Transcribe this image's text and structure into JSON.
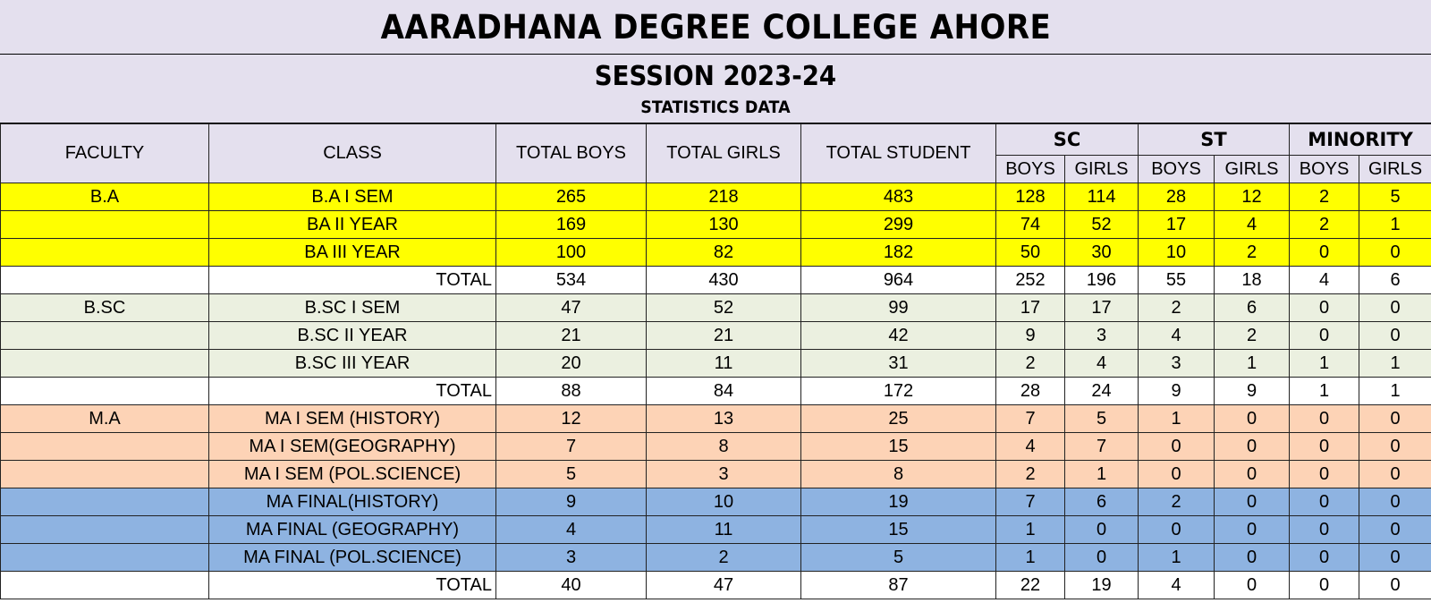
{
  "title": "AARADHANA DEGREE COLLEGE AHORE",
  "session": "SESSION 2023-24",
  "subtitle": "STATISTICS DATA",
  "headers": {
    "faculty": "FACULTY",
    "class": "CLASS",
    "total_boys": "TOTAL BOYS",
    "total_girls": "TOTAL GIRLS",
    "total_student": "TOTAL STUDENT",
    "sc": "SC",
    "st": "ST",
    "minority": "MINORITY",
    "boys": "BOYS",
    "girls": "GIRLS"
  },
  "colors": {
    "header_bg": "#e4e0ee",
    "ba_rows": "#ffff00",
    "bsc_rows": "#ebf0e0",
    "ma_sem_rows": "#fdd3b6",
    "ma_final_rows": "#8eb3e1",
    "total_rows": "#ffffff"
  },
  "rows": [
    {
      "faculty": "B.A",
      "class": "B.A I SEM",
      "tb": "265",
      "tg": "218",
      "ts": "483",
      "scb": "128",
      "scg": "114",
      "stb": "28",
      "stg": "12",
      "mb": "2",
      "mg": "5"
    },
    {
      "faculty": "",
      "class": "BA II YEAR",
      "tb": "169",
      "tg": "130",
      "ts": "299",
      "scb": "74",
      "scg": "52",
      "stb": "17",
      "stg": "4",
      "mb": "2",
      "mg": "1"
    },
    {
      "faculty": "",
      "class": "BA III YEAR",
      "tb": "100",
      "tg": "82",
      "ts": "182",
      "scb": "50",
      "scg": "30",
      "stb": "10",
      "stg": "2",
      "mb": "0",
      "mg": "0"
    },
    {
      "faculty": "",
      "class": "TOTAL",
      "tb": "534",
      "tg": "430",
      "ts": "964",
      "scb": "252",
      "scg": "196",
      "stb": "55",
      "stg": "18",
      "mb": "4",
      "mg": "6"
    },
    {
      "faculty": "B.SC",
      "class": "B.SC I SEM",
      "tb": "47",
      "tg": "52",
      "ts": "99",
      "scb": "17",
      "scg": "17",
      "stb": "2",
      "stg": "6",
      "mb": "0",
      "mg": "0"
    },
    {
      "faculty": "",
      "class": "B.SC II YEAR",
      "tb": "21",
      "tg": "21",
      "ts": "42",
      "scb": "9",
      "scg": "3",
      "stb": "4",
      "stg": "2",
      "mb": "0",
      "mg": "0"
    },
    {
      "faculty": "",
      "class": "B.SC III YEAR",
      "tb": "20",
      "tg": "11",
      "ts": "31",
      "scb": "2",
      "scg": "4",
      "stb": "3",
      "stg": "1",
      "mb": "1",
      "mg": "1"
    },
    {
      "faculty": "",
      "class": "TOTAL",
      "tb": "88",
      "tg": "84",
      "ts": "172",
      "scb": "28",
      "scg": "24",
      "stb": "9",
      "stg": "9",
      "mb": "1",
      "mg": "1"
    },
    {
      "faculty": "M.A",
      "class": "MA I SEM (HISTORY)",
      "tb": "12",
      "tg": "13",
      "ts": "25",
      "scb": "7",
      "scg": "5",
      "stb": "1",
      "stg": "0",
      "mb": "0",
      "mg": "0"
    },
    {
      "faculty": "",
      "class": "MA I SEM(GEOGRAPHY)",
      "tb": "7",
      "tg": "8",
      "ts": "15",
      "scb": "4",
      "scg": "7",
      "stb": "0",
      "stg": "0",
      "mb": "0",
      "mg": "0"
    },
    {
      "faculty": "",
      "class": "MA I SEM (POL.SCIENCE)",
      "tb": "5",
      "tg": "3",
      "ts": "8",
      "scb": "2",
      "scg": "1",
      "stb": "0",
      "stg": "0",
      "mb": "0",
      "mg": "0"
    },
    {
      "faculty": "",
      "class": "MA FINAL(HISTORY)",
      "tb": "9",
      "tg": "10",
      "ts": "19",
      "scb": "7",
      "scg": "6",
      "stb": "2",
      "stg": "0",
      "mb": "0",
      "mg": "0"
    },
    {
      "faculty": "",
      "class": "MA FINAL (GEOGRAPHY)",
      "tb": "4",
      "tg": "11",
      "ts": "15",
      "scb": "1",
      "scg": "0",
      "stb": "0",
      "stg": "0",
      "mb": "0",
      "mg": "0"
    },
    {
      "faculty": "",
      "class": "MA FINAL (POL.SCIENCE)",
      "tb": "3",
      "tg": "2",
      "ts": "5",
      "scb": "1",
      "scg": "0",
      "stb": "1",
      "stg": "0",
      "mb": "0",
      "mg": "0"
    },
    {
      "faculty": "",
      "class": "TOTAL",
      "tb": "40",
      "tg": "47",
      "ts": "87",
      "scb": "22",
      "scg": "19",
      "stb": "4",
      "stg": "0",
      "mb": "0",
      "mg": "0"
    }
  ]
}
